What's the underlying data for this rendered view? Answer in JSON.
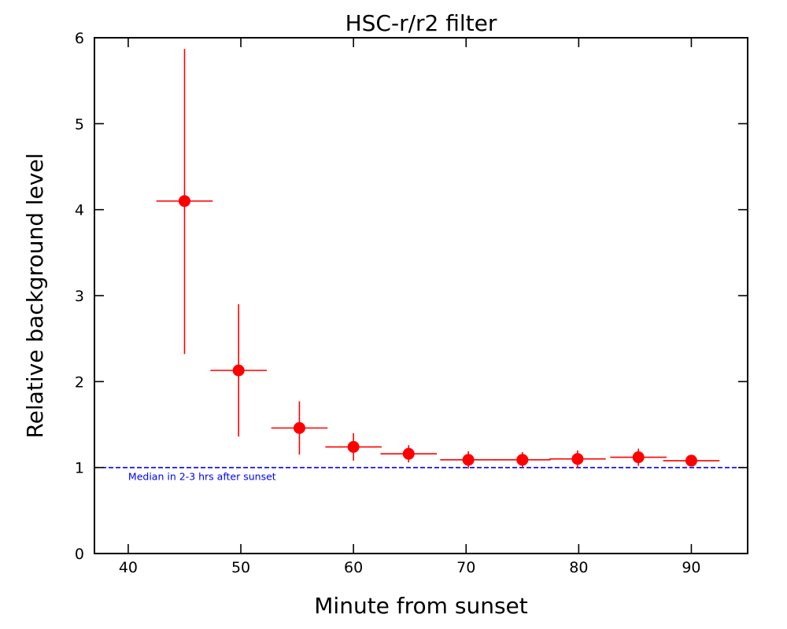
{
  "chart_data": {
    "type": "scatter",
    "title": "HSC-r/r2 filter",
    "xlabel": "Minute from sunset",
    "ylabel": "Relative background level",
    "xlim": [
      37,
      95
    ],
    "ylim": [
      0,
      6
    ],
    "xticks": [
      40,
      50,
      60,
      70,
      80,
      90
    ],
    "yticks": [
      0,
      1,
      2,
      3,
      4,
      5,
      6
    ],
    "grid": false,
    "series": [
      {
        "color": "#ff0000",
        "marker": "circle",
        "points": [
          {
            "x": 45.0,
            "y": 4.1,
            "xerr": [
              2.5,
              2.5
            ],
            "yerr": [
              1.78,
              1.77
            ]
          },
          {
            "x": 49.8,
            "y": 2.13,
            "xerr": [
              2.5,
              2.5
            ],
            "yerr": [
              0.77,
              0.77
            ]
          },
          {
            "x": 55.2,
            "y": 1.46,
            "xerr": [
              2.5,
              2.5
            ],
            "yerr": [
              0.31,
              0.31
            ]
          },
          {
            "x": 60.0,
            "y": 1.24,
            "xerr": [
              2.5,
              2.5
            ],
            "yerr": [
              0.16,
              0.16
            ]
          },
          {
            "x": 64.9,
            "y": 1.16,
            "xerr": [
              2.5,
              2.5
            ],
            "yerr": [
              0.1,
              0.1
            ]
          },
          {
            "x": 70.2,
            "y": 1.09,
            "xerr": [
              2.5,
              2.5
            ],
            "yerr": [
              0.1,
              0.1
            ]
          },
          {
            "x": 75.0,
            "y": 1.09,
            "xerr": [
              2.5,
              2.5
            ],
            "yerr": [
              0.09,
              0.09
            ]
          },
          {
            "x": 79.9,
            "y": 1.1,
            "xerr": [
              2.5,
              2.5
            ],
            "yerr": [
              0.1,
              0.1
            ]
          },
          {
            "x": 85.3,
            "y": 1.12,
            "xerr": [
              2.5,
              2.5
            ],
            "yerr": [
              0.1,
              0.1
            ]
          },
          {
            "x": 90.0,
            "y": 1.08,
            "xerr": [
              2.5,
              2.5
            ],
            "yerr": [
              0.04,
              0.04
            ]
          }
        ]
      }
    ],
    "reference_line": {
      "y": 1.0,
      "color": "#0000ff",
      "style": "dashed",
      "label": "Median in 2-3 hrs after sunset"
    }
  }
}
